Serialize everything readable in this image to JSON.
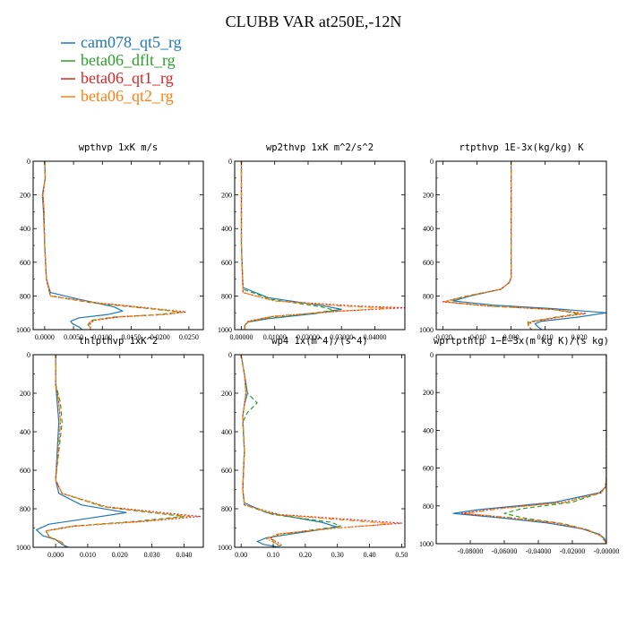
{
  "title": "CLUBB VAR at250E,-12N",
  "legend": [
    {
      "label": "cam078_qt5_rg",
      "color": "#1f77b4",
      "dash": "solid"
    },
    {
      "label": "beta06_dflt_rg",
      "color": "#2ca02c",
      "dash": "dashed"
    },
    {
      "label": "beta06_qt1_rg",
      "color": "#d62728",
      "dash": "dotted"
    },
    {
      "label": "beta06_qt2_rg",
      "color": "#ff7f0e",
      "dash": "dashdot"
    }
  ],
  "chart_data": [
    {
      "type": "line",
      "title": "wpthvp  1xK m/s",
      "xlim": [
        -0.002,
        0.0275
      ],
      "ylim": [
        1000,
        0
      ],
      "xticks": [
        "0.0000",
        "0.0050",
        "0.0100",
        "0.0150",
        "0.0200",
        "0.0250"
      ],
      "xtick_values": [
        0,
        0.005,
        0.01,
        0.015,
        0.02,
        0.025
      ],
      "yticks": [
        0,
        200,
        400,
        600,
        800,
        1000
      ],
      "series": [
        {
          "name": "cam078_qt5_rg",
          "x": [
            0,
            0.0001,
            -0.0004,
            -0.0002,
            0,
            0.0003,
            0.001,
            0.006,
            0.012,
            0.0135,
            0.011,
            0.006,
            0.0045,
            0.0048,
            0.006,
            0.0065
          ],
          "y": [
            0,
            100,
            200,
            300,
            500,
            700,
            780,
            820,
            865,
            890,
            910,
            930,
            950,
            965,
            985,
            1000
          ]
        },
        {
          "name": "beta06_dflt_rg",
          "x": [
            0,
            0.0001,
            -0.0003,
            -0.0001,
            0,
            0.0003,
            0.001,
            0.008,
            0.018,
            0.0235,
            0.02,
            0.012,
            0.008,
            0.0075,
            0.008
          ],
          "y": [
            0,
            100,
            200,
            300,
            500,
            700,
            800,
            840,
            875,
            895,
            910,
            925,
            945,
            970,
            1000
          ]
        },
        {
          "name": "beta06_qt1_rg",
          "x": [
            0,
            0.0001,
            -0.0003,
            -0.0001,
            0,
            0.0003,
            0.001,
            0.009,
            0.019,
            0.0245,
            0.021,
            0.013,
            0.0085,
            0.0078,
            0.008
          ],
          "y": [
            0,
            100,
            200,
            300,
            500,
            700,
            800,
            840,
            875,
            895,
            910,
            925,
            945,
            970,
            1000
          ]
        },
        {
          "name": "beta06_qt2_rg",
          "x": [
            0,
            0.0001,
            -0.0003,
            -0.0001,
            0,
            0.0003,
            0.001,
            0.0085,
            0.0185,
            0.024,
            0.0205,
            0.0125,
            0.0082,
            0.0076,
            0.008
          ],
          "y": [
            0,
            100,
            200,
            300,
            500,
            700,
            800,
            840,
            875,
            895,
            910,
            925,
            945,
            970,
            1000
          ]
        }
      ]
    },
    {
      "type": "line",
      "title": "wp2thvp  1xK m^2/s^2",
      "xlim": [
        -0.002,
        0.049
      ],
      "ylim": [
        1000,
        0
      ],
      "xticks": [
        "0.00000",
        "0.01000",
        "0.02000",
        "0.03000",
        "0.04000"
      ],
      "xtick_values": [
        0,
        0.01,
        0.02,
        0.03,
        0.04
      ],
      "yticks": [
        0,
        200,
        400,
        600,
        800,
        1000
      ],
      "series": [
        {
          "name": "cam078_qt5_rg",
          "x": [
            0,
            0,
            0.0005,
            0.008,
            0.025,
            0.03,
            0.022,
            0.008,
            0.002,
            0.001,
            0.001
          ],
          "y": [
            0,
            500,
            750,
            810,
            860,
            880,
            905,
            935,
            955,
            975,
            1000
          ]
        },
        {
          "name": "beta06_dflt_rg",
          "x": [
            0,
            0,
            0.0005,
            0.009,
            0.024,
            0.028,
            0.02,
            0.007,
            0.002,
            0.001,
            0.001
          ],
          "y": [
            0,
            500,
            760,
            820,
            865,
            885,
            905,
            935,
            955,
            975,
            1000
          ]
        },
        {
          "name": "beta06_qt1_rg",
          "x": [
            0,
            0,
            0.0005,
            0.01,
            0.035,
            0.049,
            0.03,
            0.01,
            0.002,
            0.001,
            0.001
          ],
          "y": [
            0,
            500,
            780,
            830,
            860,
            870,
            890,
            920,
            950,
            975,
            1000
          ]
        },
        {
          "name": "beta06_qt2_rg",
          "x": [
            0,
            0,
            0.0005,
            0.01,
            0.03,
            0.045,
            0.028,
            0.009,
            0.002,
            0.001,
            0.001
          ],
          "y": [
            0,
            500,
            780,
            830,
            860,
            872,
            892,
            922,
            952,
            975,
            1000
          ]
        }
      ]
    },
    {
      "type": "line",
      "title": "rtpthvp  1E-3x(kg/kg) K",
      "xlim": [
        -0.022,
        0.028
      ],
      "ylim": [
        1000,
        0
      ],
      "xticks": [
        "-0.020",
        "-0.010",
        "0.000",
        "0.010",
        "0.020"
      ],
      "xtick_values": [
        -0.02,
        -0.01,
        0,
        0.01,
        0.02
      ],
      "yticks": [
        0,
        200,
        400,
        600,
        800,
        1000
      ],
      "series": [
        {
          "name": "cam078_qt5_rg",
          "x": [
            0,
            0,
            -0.0005,
            -0.003,
            -0.012,
            -0.017,
            -0.005,
            0.012,
            0.028,
            0.02,
            0.009,
            0.007,
            0.008,
            0.009
          ],
          "y": [
            0,
            690,
            720,
            760,
            800,
            830,
            855,
            875,
            900,
            925,
            950,
            965,
            985,
            1000
          ]
        },
        {
          "name": "beta06_dflt_rg",
          "x": [
            0,
            0,
            -0.0005,
            -0.003,
            -0.014,
            -0.019,
            -0.006,
            0.012,
            0.02,
            0.012,
            0.005,
            0.005,
            0.006
          ],
          "y": [
            0,
            690,
            720,
            760,
            805,
            835,
            860,
            880,
            905,
            930,
            955,
            975,
            1000
          ]
        },
        {
          "name": "beta06_qt1_rg",
          "x": [
            0,
            0,
            -0.0005,
            -0.003,
            -0.014,
            -0.02,
            -0.007,
            0.012,
            0.022,
            0.013,
            0.006,
            0.005,
            0.006
          ],
          "y": [
            0,
            690,
            720,
            760,
            805,
            835,
            860,
            880,
            905,
            930,
            955,
            975,
            1000
          ]
        },
        {
          "name": "beta06_qt2_rg",
          "x": [
            0,
            0,
            -0.0005,
            -0.003,
            -0.014,
            -0.0195,
            -0.0065,
            0.012,
            0.021,
            0.0125,
            0.0055,
            0.005,
            0.006
          ],
          "y": [
            0,
            690,
            720,
            760,
            805,
            835,
            860,
            880,
            905,
            930,
            955,
            975,
            1000
          ]
        }
      ]
    },
    {
      "type": "line",
      "title": "thlpthvp  1xK^2",
      "xlim": [
        -0.007,
        0.046
      ],
      "ylim": [
        1000,
        0
      ],
      "xticks": [
        "0.000",
        "0.010",
        "0.020",
        "0.030",
        "0.040"
      ],
      "xtick_values": [
        0,
        0.01,
        0.02,
        0.03,
        0.04
      ],
      "yticks": [
        0,
        200,
        400,
        600,
        800,
        1000
      ],
      "series": [
        {
          "name": "cam078_qt5_rg",
          "x": [
            0,
            0,
            0.0005,
            0.001,
            0.0005,
            0,
            0.001,
            0.008,
            0.022,
            0.01,
            -0.002,
            -0.006,
            -0.004,
            0,
            0.002,
            0.004
          ],
          "y": [
            0,
            150,
            250,
            350,
            500,
            650,
            720,
            780,
            820,
            850,
            880,
            910,
            940,
            960,
            985,
            1000
          ]
        },
        {
          "name": "beta06_dflt_rg",
          "x": [
            0,
            0,
            0.0015,
            0.002,
            0.001,
            0,
            0.002,
            0.015,
            0.04,
            0.025,
            0.005,
            -0.003,
            -0.002,
            0.002,
            0.003
          ],
          "y": [
            0,
            150,
            250,
            350,
            500,
            650,
            720,
            790,
            840,
            865,
            890,
            915,
            945,
            975,
            1000
          ]
        },
        {
          "name": "beta06_qt1_rg",
          "x": [
            0,
            0,
            0.001,
            0.0015,
            0.0008,
            0,
            0.002,
            0.016,
            0.045,
            0.028,
            0.006,
            -0.003,
            -0.002,
            0.002,
            0.003
          ],
          "y": [
            0,
            150,
            250,
            350,
            500,
            650,
            720,
            790,
            840,
            865,
            890,
            915,
            945,
            975,
            1000
          ]
        },
        {
          "name": "beta06_qt2_rg",
          "x": [
            0,
            0,
            0.001,
            0.0015,
            0.0008,
            0,
            0.002,
            0.0155,
            0.042,
            0.027,
            0.0055,
            -0.003,
            -0.002,
            0.002,
            0.003
          ],
          "y": [
            0,
            150,
            250,
            350,
            500,
            650,
            720,
            790,
            840,
            865,
            890,
            915,
            945,
            975,
            1000
          ]
        }
      ]
    },
    {
      "type": "line",
      "title": "wp4  1x(m^4)/(s^4)",
      "xlim": [
        -0.02,
        0.51
      ],
      "ylim": [
        1000,
        0
      ],
      "xticks": [
        "0.00",
        "0.10",
        "0.20",
        "0.30",
        "0.40",
        "0.50"
      ],
      "xtick_values": [
        0,
        0.1,
        0.2,
        0.3,
        0.4,
        0.5
      ],
      "yticks": [
        0,
        200,
        400,
        600,
        800,
        1000
      ],
      "series": [
        {
          "name": "cam078_qt5_rg",
          "x": [
            0,
            0.01,
            0.02,
            0.01,
            0.005,
            0.01,
            0.005,
            0.01,
            0.08,
            0.25,
            0.3,
            0.2,
            0.08,
            0.05,
            0.07,
            0.12
          ],
          "y": [
            0,
            100,
            200,
            260,
            320,
            500,
            700,
            770,
            820,
            870,
            895,
            920,
            950,
            970,
            985,
            1000
          ]
        },
        {
          "name": "beta06_dflt_rg",
          "x": [
            0,
            0.01,
            0.02,
            0.05,
            0.02,
            0.005,
            0.01,
            0.005,
            0.01,
            0.1,
            0.28,
            0.31,
            0.2,
            0.1,
            0.1,
            0.13
          ],
          "y": [
            0,
            100,
            200,
            250,
            300,
            350,
            500,
            700,
            780,
            830,
            870,
            890,
            915,
            945,
            975,
            1000
          ]
        },
        {
          "name": "beta06_qt1_rg",
          "x": [
            0,
            0.01,
            0.015,
            0.01,
            0.005,
            0.01,
            0.005,
            0.01,
            0.12,
            0.38,
            0.5,
            0.3,
            0.12,
            0.09,
            0.12,
            0.13
          ],
          "y": [
            0,
            100,
            200,
            260,
            320,
            500,
            700,
            780,
            830,
            860,
            875,
            900,
            930,
            955,
            980,
            1000
          ]
        },
        {
          "name": "beta06_qt2_rg",
          "x": [
            0,
            0.01,
            0.015,
            0.01,
            0.005,
            0.01,
            0.005,
            0.01,
            0.11,
            0.35,
            0.47,
            0.28,
            0.11,
            0.08,
            0.11,
            0.12
          ],
          "y": [
            0,
            100,
            200,
            260,
            320,
            500,
            700,
            780,
            830,
            862,
            878,
            902,
            932,
            957,
            980,
            1000
          ]
        }
      ]
    },
    {
      "type": "line",
      "title": "wprtpthlp  1−E−3x(m kg K)/(s kg)",
      "xlim": [
        -0.1,
        0
      ],
      "ylim": [
        1000,
        0
      ],
      "xticks": [
        "-0.08000",
        "-0.06000",
        "-0.04000",
        "-0.02000",
        "-0.00000"
      ],
      "xtick_values": [
        -0.08,
        -0.06,
        -0.04,
        -0.02,
        0
      ],
      "yticks": [
        0,
        200,
        400,
        600,
        800,
        1000
      ],
      "series": [
        {
          "name": "cam078_qt5_rg",
          "x": [
            0,
            0,
            -0.0005,
            -0.004,
            -0.03,
            -0.075,
            -0.09,
            -0.06,
            -0.035,
            -0.015,
            -0.004,
            -0.001,
            0
          ],
          "y": [
            0,
            650,
            700,
            730,
            780,
            820,
            840,
            865,
            890,
            920,
            950,
            975,
            1000
          ]
        },
        {
          "name": "beta06_dflt_rg",
          "x": [
            0,
            0,
            -0.0005,
            -0.003,
            -0.02,
            -0.05,
            -0.06,
            -0.048,
            -0.025,
            -0.01,
            -0.002,
            0
          ],
          "y": [
            0,
            650,
            700,
            730,
            780,
            815,
            840,
            865,
            895,
            930,
            965,
            1000
          ]
        },
        {
          "name": "beta06_qt1_rg",
          "x": [
            0,
            0,
            -0.0005,
            -0.003,
            -0.025,
            -0.065,
            -0.085,
            -0.058,
            -0.03,
            -0.012,
            -0.003,
            0
          ],
          "y": [
            0,
            650,
            700,
            730,
            780,
            815,
            840,
            862,
            890,
            925,
            960,
            1000
          ]
        },
        {
          "name": "beta06_qt2_rg",
          "x": [
            0,
            0,
            -0.0005,
            -0.003,
            -0.024,
            -0.063,
            -0.083,
            -0.056,
            -0.029,
            -0.011,
            -0.003,
            0
          ],
          "y": [
            0,
            650,
            700,
            730,
            780,
            815,
            840,
            862,
            890,
            925,
            960,
            1000
          ]
        }
      ]
    }
  ]
}
